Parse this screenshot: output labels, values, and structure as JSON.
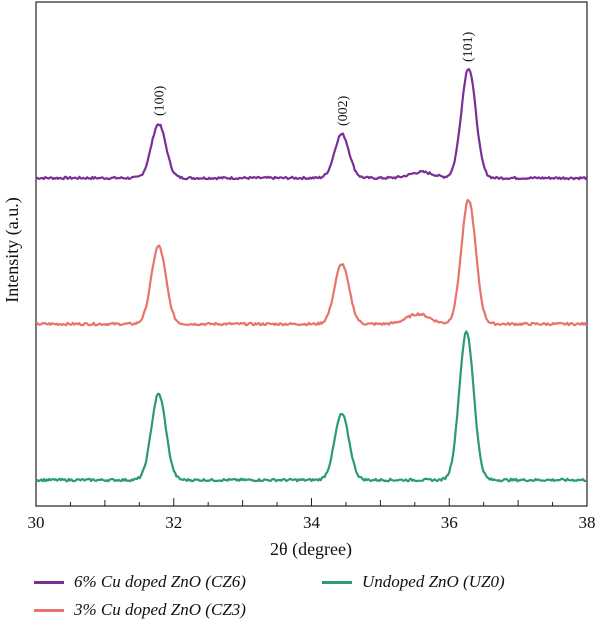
{
  "chart_data": {
    "type": "line",
    "title": "",
    "xlabel": "2θ (degree)",
    "ylabel": "Intensity (a.u.)",
    "xlim": [
      30,
      38
    ],
    "xticks": [
      "30",
      "32",
      "34",
      "36",
      "38"
    ],
    "x_tick_values": [
      30,
      32,
      34,
      36,
      38
    ],
    "peak_labels": [
      {
        "text": "(100)",
        "x": 31.78
      },
      {
        "text": "(002)",
        "x": 34.44
      },
      {
        "text": "(101)",
        "x": 36.26
      }
    ],
    "legend_position": "bottom",
    "series": [
      {
        "name": "6% Cu doped ZnO (CZ6)",
        "color": "#7b2f95",
        "peaks": [
          {
            "x": 31.78,
            "height": 0.27
          },
          {
            "x": 34.44,
            "height": 0.22
          },
          {
            "x": 35.6,
            "height": 0.03
          },
          {
            "x": 36.28,
            "height": 0.55
          }
        ]
      },
      {
        "name": "3% Cu doped ZnO (CZ3)",
        "color": "#e8736c",
        "peaks": [
          {
            "x": 31.78,
            "height": 0.39
          },
          {
            "x": 34.44,
            "height": 0.3
          },
          {
            "x": 35.55,
            "height": 0.05
          },
          {
            "x": 36.28,
            "height": 0.62
          }
        ]
      },
      {
        "name": "Undoped ZnO (UZ0)",
        "color": "#2a9a78",
        "peaks": [
          {
            "x": 31.78,
            "height": 0.43
          },
          {
            "x": 34.44,
            "height": 0.33
          },
          {
            "x": 36.25,
            "height": 0.74
          }
        ]
      }
    ]
  },
  "legend": {
    "items": [
      {
        "label": "6% Cu doped ZnO (CZ6)",
        "color": "#7b2f95"
      },
      {
        "label": "Undoped ZnO (UZ0)",
        "color": "#2a9a78"
      },
      {
        "label": "3% Cu doped ZnO (CZ3)",
        "color": "#e8736c"
      }
    ]
  }
}
